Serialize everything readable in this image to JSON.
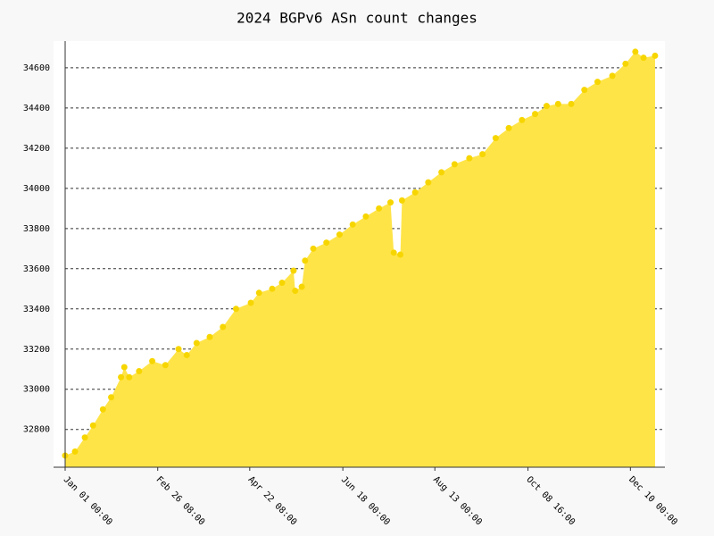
{
  "chart_data": {
    "type": "area",
    "title": "2024 BGPv6 ASn count changes",
    "x": [
      "Jan 01 00:00",
      "Jan 07 00:00",
      "Jan 13 00:00",
      "Jan 18 00:00",
      "Jan 24 00:00",
      "Jan 29 00:00",
      "Feb 04 00:00",
      "Feb 06 00:00",
      "Feb 09 00:00",
      "Feb 15 00:00",
      "Feb 23 00:00",
      "Mar 02 00:00",
      "Mar 10 00:00",
      "Mar 15 00:00",
      "Mar 21 00:00",
      "Mar 29 00:00",
      "Apr 06 00:00",
      "Apr 14 00:00",
      "Apr 23 00:00",
      "Apr 28 00:00",
      "May 06 00:00",
      "May 12 00:00",
      "May 19 00:00",
      "May 20 00:00",
      "May 24 00:00",
      "May 26 00:00",
      "May 31 00:00",
      "Jun 08 00:00",
      "Jun 16 00:00",
      "Jun 24 00:00",
      "Jul 02 00:00",
      "Jul 10 00:00",
      "Jul 17 00:00",
      "Jul 19 00:00",
      "Jul 23 00:00",
      "Jul 24 00:00",
      "Aug 01 00:00",
      "Aug 09 00:00",
      "Aug 17 00:00",
      "Aug 25 00:00",
      "Sep 03 00:00",
      "Sep 11 00:00",
      "Sep 19 00:00",
      "Sep 27 00:00",
      "Oct 05 00:00",
      "Oct 13 00:00",
      "Oct 20 00:00",
      "Oct 27 00:00",
      "Nov 04 00:00",
      "Nov 12 00:00",
      "Nov 20 00:00",
      "Nov 29 00:00",
      "Dec 07 00:00",
      "Dec 13 00:00",
      "Dec 18 00:00",
      "Dec 25 00:00"
    ],
    "values": [
      32670,
      32690,
      32760,
      32820,
      32900,
      32960,
      33060,
      33110,
      33060,
      33090,
      33140,
      33120,
      33200,
      33170,
      33230,
      33260,
      33310,
      33400,
      33430,
      33480,
      33500,
      33530,
      33590,
      33490,
      33510,
      33640,
      33700,
      33730,
      33770,
      33820,
      33860,
      33900,
      33930,
      33680,
      33670,
      33940,
      33980,
      34030,
      34080,
      34120,
      34150,
      34170,
      34250,
      34300,
      34340,
      34370,
      34410,
      34420,
      34420,
      34490,
      34530,
      34560,
      34620,
      34680,
      34650,
      34660
    ],
    "color": "#ffe448",
    "marker_color": "#f7d600",
    "xlim": [
      "Jan 01 00:00",
      "Dec 31 00:00"
    ],
    "xticks": [
      "Jan 01 00:00",
      "Feb 26 08:00",
      "Apr 22 08:00",
      "Jun 18 00:00",
      "Aug 13 00:00",
      "Oct 08 16:00",
      "Dec 10 00:00"
    ],
    "ylim": [
      32612,
      34733
    ],
    "yticks": [
      32800,
      33000,
      33200,
      33400,
      33600,
      33800,
      34000,
      34200,
      34400,
      34600
    ],
    "grid": true
  }
}
